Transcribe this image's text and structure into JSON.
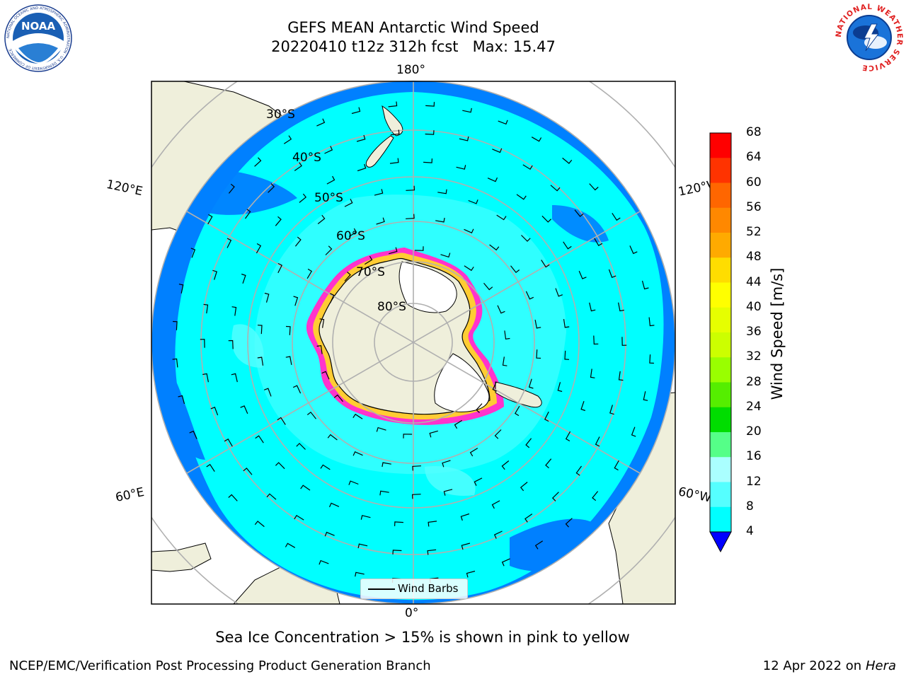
{
  "title": {
    "line1": "GEFS MEAN Antarctic Wind Speed",
    "line2": "20220410 t12z 312h fcst   Max: 15.47"
  },
  "map": {
    "lon_labels": [
      "180°",
      "0°",
      "120°E",
      "120°W",
      "60°E",
      "60°W"
    ],
    "lat_labels": [
      "30°S",
      "40°S",
      "50°S",
      "60°S",
      "70°S",
      "80°S"
    ],
    "legend_label": "Wind Barbs"
  },
  "colorbar": {
    "label": "Wind Speed [m/s]",
    "ticks": [
      "68",
      "64",
      "60",
      "56",
      "52",
      "48",
      "44",
      "40",
      "36",
      "32",
      "28",
      "24",
      "20",
      "16",
      "12",
      "8",
      "4"
    ],
    "colors": [
      "#ff0000",
      "#ff3300",
      "#ff6600",
      "#ff8800",
      "#ffaa00",
      "#ffdd00",
      "#ffff00",
      "#e6ff00",
      "#ccff00",
      "#99ff00",
      "#55ee00",
      "#00dd00",
      "#55ff88",
      "#aaffff",
      "#55ffff",
      "#00ffff",
      "#0080ff"
    ],
    "extend_color": "#0000ff"
  },
  "colors": {
    "land": "#efefdb",
    "ocean_low": "#0080ff",
    "ocean_mid": "#00ffff",
    "ocean_high": "#55ffff",
    "sea_ice_pink": "#ff33cc",
    "sea_ice_yellow": "#ffcc33"
  },
  "note": "Sea Ice Concentration > 15% is shown in pink to yellow",
  "footer": {
    "left": "NCEP/EMC/Verification Post Processing Product Generation Branch",
    "right_prefix": "12 Apr 2022 on ",
    "right_host": "Hera"
  },
  "logos": {
    "noaa_text": "NOAA",
    "noaa_ring": "NATIONAL OCEANIC AND ATMOSPHERIC ADMINISTRATION · U.S. DEPARTMENT OF COMMERCE",
    "nws_ring": "NATIONAL WEATHER SERVICE"
  }
}
